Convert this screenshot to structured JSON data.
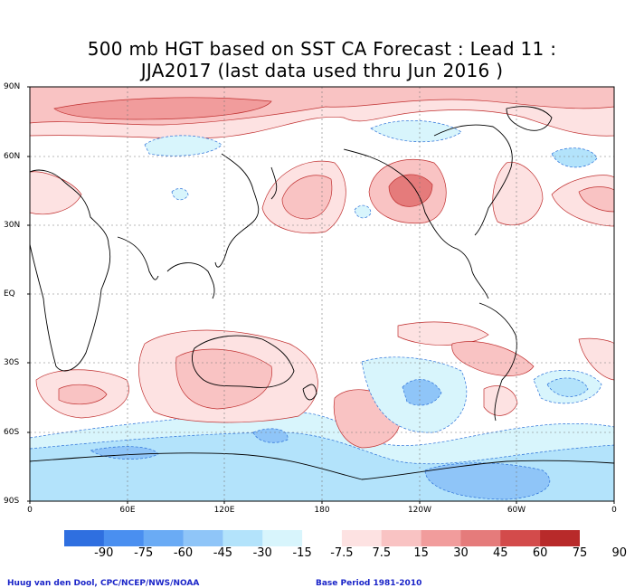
{
  "title": {
    "line1": "500 mb HGT based on SST CA Forecast : Lead 11 :",
    "line2": "JJA2017 (last data used thru Jun 2016 )"
  },
  "map": {
    "lat_labels": [
      "90N",
      "60N",
      "30N",
      "EQ",
      "30S",
      "60S",
      "90S"
    ],
    "lon_labels": [
      "0",
      "60E",
      "120E",
      "180",
      "120W",
      "60W",
      "0"
    ],
    "contour_interval": 7.5
  },
  "colorbar": {
    "labels": [
      "-90",
      "-75",
      "-60",
      "-45",
      "-30",
      "-15",
      "-7.5",
      "7.5",
      "15",
      "30",
      "45",
      "60",
      "75",
      "90"
    ],
    "colors": [
      "#2f6fe0",
      "#4a8ff0",
      "#6aabf5",
      "#8fc5f8",
      "#b3e3fb",
      "#d8f5fc",
      "#ffffff",
      "#fde2e2",
      "#f9c3c3",
      "#f19c9c",
      "#e57b7b",
      "#d34b4b",
      "#b82a2a"
    ]
  },
  "footer": {
    "credit": "Huug van den Dool, CPC/NCEP/NWS/NOAA",
    "base_period": "Base Period 1981-2010"
  }
}
